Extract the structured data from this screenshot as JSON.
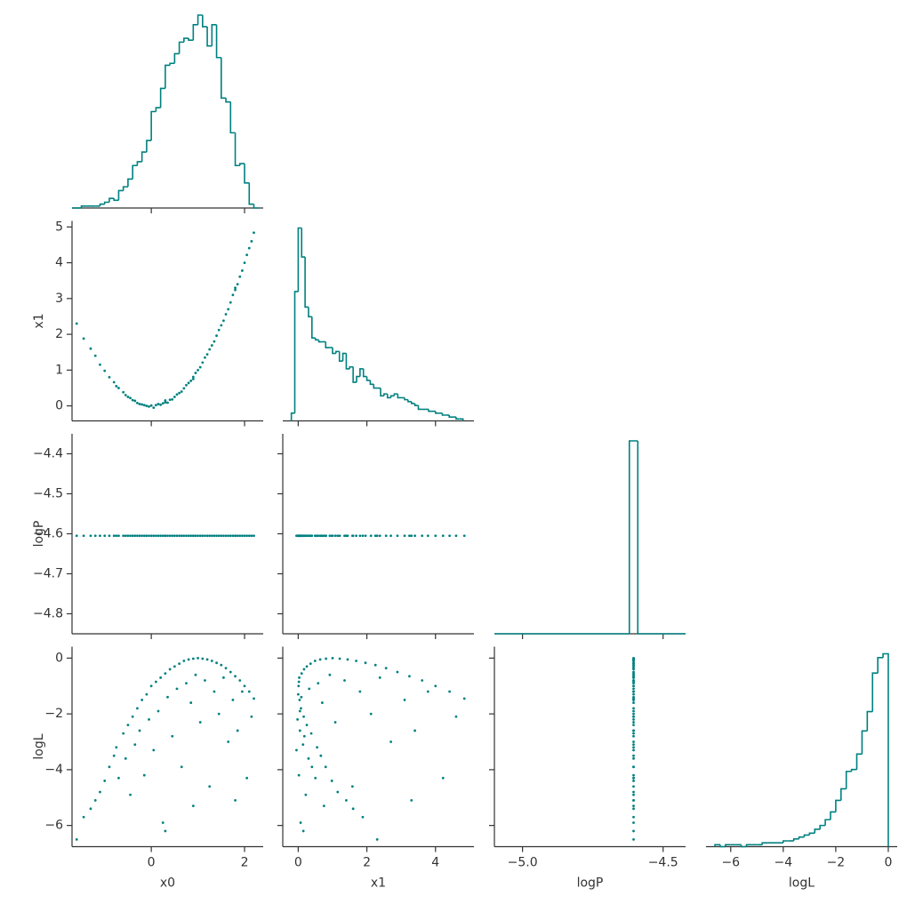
{
  "chart_data": {
    "type": "corner",
    "color": "#008080",
    "variables": [
      {
        "name": "x0",
        "xlim": [
          -1.7,
          2.4
        ],
        "xticks": [
          0,
          2
        ],
        "bins": [
          -1.7,
          -1.6,
          -1.5,
          -1.4,
          -1.3,
          -1.2,
          -1.1,
          -1.0,
          -0.9,
          -0.8,
          -0.7,
          -0.6,
          -0.5,
          -0.4,
          -0.3,
          -0.2,
          -0.1,
          0,
          0.1,
          0.2,
          0.3,
          0.4,
          0.5,
          0.6,
          0.7,
          0.8,
          0.9,
          1.0,
          1.1,
          1.2,
          1.3,
          1.4,
          1.5,
          1.6,
          1.7,
          1.8,
          1.9,
          2.0,
          2.1,
          2.2,
          2.3
        ],
        "counts": [
          0,
          0,
          1,
          1,
          1,
          1,
          2,
          3,
          5,
          4,
          9,
          11,
          15,
          22,
          24,
          29,
          35,
          50,
          52,
          62,
          74,
          75,
          80,
          86,
          88,
          87,
          95,
          100,
          94,
          84,
          95,
          78,
          57,
          55,
          39,
          22,
          23,
          13,
          2,
          0
        ]
      },
      {
        "name": "x1",
        "xlim": [
          -0.45,
          5.12
        ],
        "xticks": [
          0,
          2,
          4
        ],
        "ylim": [
          -0.42,
          5.17
        ],
        "yticks": [
          0,
          1,
          2,
          3,
          4,
          5
        ],
        "bins": [
          -0.2,
          -0.1,
          0,
          0.1,
          0.2,
          0.3,
          0.4,
          0.5,
          0.6,
          0.7,
          0.8,
          0.9,
          1.0,
          1.1,
          1.2,
          1.3,
          1.4,
          1.5,
          1.6,
          1.7,
          1.8,
          1.9,
          2.0,
          2.1,
          2.2,
          2.3,
          2.4,
          2.5,
          2.6,
          2.7,
          2.8,
          2.9,
          3.0,
          3.1,
          3.2,
          3.3,
          3.4,
          3.5,
          3.6,
          3.7,
          3.8,
          3.9,
          4.0,
          4.1,
          4.2,
          4.3,
          4.4,
          4.5,
          4.6,
          4.7,
          4.8
        ],
        "counts": [
          4,
          67,
          100,
          85,
          59,
          54,
          43,
          42,
          41,
          41,
          38,
          38,
          35,
          36,
          31,
          35,
          27,
          28,
          20,
          23,
          27,
          23,
          21,
          19,
          17,
          17,
          13,
          14,
          12,
          13,
          14,
          12,
          12,
          11,
          10,
          9,
          8,
          6,
          6,
          6,
          5,
          5,
          4,
          4,
          3,
          3,
          2,
          2,
          1,
          1
        ]
      },
      {
        "name": "logP",
        "xlim": [
          -5.1,
          -4.42
        ],
        "xticks": [
          {
            "value": -5.0,
            "label": "−5.0"
          },
          {
            "value": -4.5,
            "label": "−4.5"
          }
        ],
        "ylim": [
          -4.85,
          -4.35
        ],
        "yticks": [
          {
            "value": -4.8,
            "label": "−4.8"
          },
          {
            "value": -4.7,
            "label": "−4.7"
          },
          {
            "value": -4.6,
            "label": "−4.6"
          },
          {
            "value": -4.5,
            "label": "−4.5"
          },
          {
            "value": -4.4,
            "label": "−4.4"
          }
        ],
        "bins": [
          -5.1,
          -4.62,
          -4.59,
          -4.42
        ],
        "counts": [
          0,
          100,
          0
        ]
      },
      {
        "name": "logL",
        "xlim": [
          -6.94,
          0.34
        ],
        "xticks": [
          {
            "value": -6,
            "label": "−6"
          },
          {
            "value": -4,
            "label": "−4"
          },
          {
            "value": -2,
            "label": "−2"
          },
          0
        ],
        "ylim": [
          -6.76,
          0.41
        ],
        "yticks": [
          {
            "value": -6,
            "label": "−6"
          },
          {
            "value": -4,
            "label": "−4"
          },
          {
            "value": -2,
            "label": "−2"
          },
          0
        ],
        "bins": [
          -6.6,
          -6.4,
          -6.2,
          -6.0,
          -5.8,
          -5.6,
          -5.4,
          -5.2,
          -5.0,
          -4.8,
          -4.6,
          -4.4,
          -4.2,
          -4.0,
          -3.8,
          -3.6,
          -3.4,
          -3.2,
          -3.0,
          -2.8,
          -2.6,
          -2.4,
          -2.2,
          -2.0,
          -1.8,
          -1.6,
          -1.4,
          -1.2,
          -1.0,
          -0.8,
          -0.6,
          -0.4,
          -0.2,
          0
        ],
        "counts": [
          1,
          0,
          1,
          1,
          1,
          0,
          1,
          1,
          1,
          2,
          2,
          2,
          2,
          3,
          3,
          4,
          5,
          6,
          7,
          9,
          11,
          14,
          18,
          24,
          30,
          39,
          40,
          48,
          60,
          70,
          90,
          98,
          100
        ]
      }
    ],
    "samples": {
      "x0": [
        -1.6,
        -1.45,
        -1.3,
        -1.2,
        -1.1,
        -1.0,
        -0.9,
        -0.8,
        -0.75,
        -0.7,
        -0.6,
        -0.55,
        -0.5,
        -0.45,
        -0.4,
        -0.35,
        -0.3,
        -0.25,
        -0.2,
        -0.15,
        -0.1,
        -0.05,
        0.0,
        0.05,
        0.1,
        0.15,
        0.2,
        0.25,
        0.3,
        0.35,
        0.4,
        0.45,
        0.5,
        0.55,
        0.6,
        0.65,
        0.7,
        0.75,
        0.8,
        0.85,
        0.9,
        0.95,
        1.0,
        1.05,
        1.1,
        1.15,
        1.2,
        1.25,
        1.3,
        1.35,
        1.4,
        1.45,
        1.5,
        1.55,
        1.6,
        1.65,
        1.7,
        1.75,
        1.8,
        1.85,
        1.9,
        1.95,
        2.0,
        2.05,
        2.1,
        2.15,
        2.2,
        0.9,
        0.3,
        1.8
      ],
      "x1": [
        2.3,
        1.88,
        1.6,
        1.4,
        1.15,
        0.98,
        0.8,
        0.66,
        0.55,
        0.5,
        0.38,
        0.3,
        0.25,
        0.22,
        0.16,
        0.14,
        0.08,
        0.05,
        0.04,
        0.02,
        0.0,
        -0.02,
        0.01,
        -0.05,
        0.02,
        0.05,
        0.03,
        0.07,
        0.1,
        0.09,
        0.17,
        0.18,
        0.25,
        0.32,
        0.36,
        0.4,
        0.49,
        0.58,
        0.64,
        0.7,
        0.81,
        0.92,
        1.0,
        1.08,
        1.21,
        1.35,
        1.44,
        1.58,
        1.69,
        1.8,
        1.96,
        2.12,
        2.25,
        2.38,
        2.56,
        2.7,
        2.89,
        3.1,
        3.24,
        3.4,
        3.61,
        3.78,
        4.0,
        4.22,
        4.41,
        4.6,
        4.84,
        0.75,
        0.15,
        3.3
      ],
      "logP": [
        -4.605,
        -4.605,
        -4.605,
        -4.605,
        -4.605,
        -4.605,
        -4.605,
        -4.605,
        -4.605,
        -4.605,
        -4.605,
        -4.605,
        -4.605,
        -4.605,
        -4.605,
        -4.605,
        -4.605,
        -4.605,
        -4.605,
        -4.605,
        -4.605,
        -4.605,
        -4.605,
        -4.605,
        -4.605,
        -4.605,
        -4.605,
        -4.605,
        -4.605,
        -4.605,
        -4.605,
        -4.605,
        -4.605,
        -4.605,
        -4.605,
        -4.605,
        -4.605,
        -4.605,
        -4.605,
        -4.605,
        -4.605,
        -4.605,
        -4.605,
        -4.605,
        -4.605,
        -4.605,
        -4.605,
        -4.605,
        -4.605,
        -4.605,
        -4.605,
        -4.605,
        -4.605,
        -4.605,
        -4.605,
        -4.605,
        -4.605,
        -4.605,
        -4.605,
        -4.605,
        -4.605,
        -4.605,
        -4.605,
        -4.605,
        -4.605,
        -4.605,
        -4.605,
        -4.605,
        -4.605,
        -4.605
      ],
      "logL": [
        -6.5,
        -5.7,
        -5.4,
        -5.1,
        -4.8,
        -4.4,
        -3.9,
        -3.5,
        -3.2,
        -4.3,
        -2.7,
        -3.6,
        -2.4,
        -4.9,
        -2.1,
        -3.1,
        -1.8,
        -2.6,
        -1.5,
        -4.2,
        -1.3,
        -2.2,
        -1.0,
        -3.3,
        -0.85,
        -1.9,
        -0.7,
        -5.9,
        -0.55,
        -1.4,
        -0.4,
        -2.8,
        -0.3,
        -1.1,
        -0.2,
        -3.9,
        -0.1,
        -0.9,
        -0.05,
        -1.6,
        -0.02,
        -0.6,
        0.0,
        -2.3,
        -0.02,
        -0.8,
        -0.05,
        -4.6,
        -0.1,
        -1.2,
        -0.17,
        -2.0,
        -0.25,
        -0.7,
        -0.36,
        -3.0,
        -0.5,
        -1.5,
        -0.65,
        -2.6,
        -0.8,
        -1.2,
        -1.0,
        -4.3,
        -1.2,
        -2.1,
        -1.45,
        -5.3,
        -6.2,
        -5.1
      ]
    }
  }
}
